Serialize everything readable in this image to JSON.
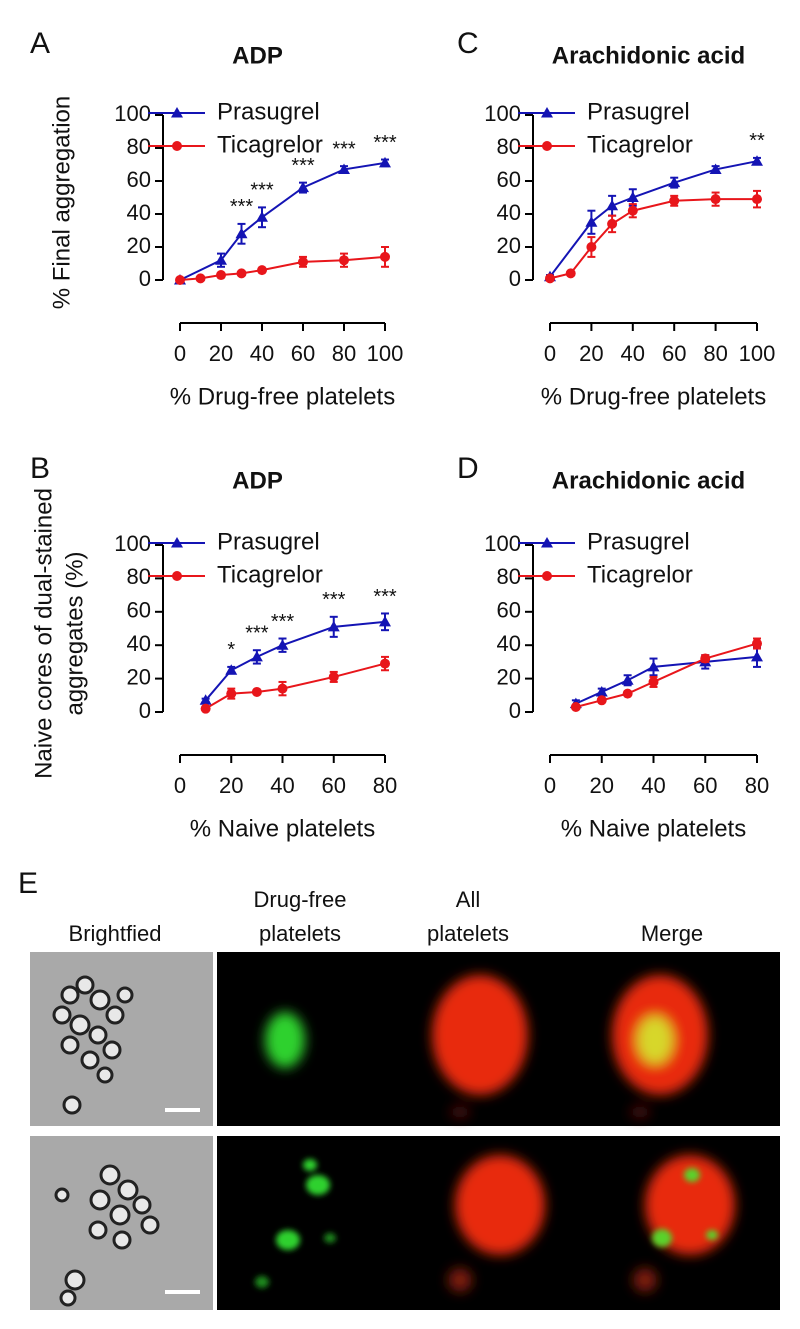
{
  "chart_data": [
    {
      "type": "line",
      "panel_label": "A",
      "title": "ADP",
      "xlabel": "% Drug-free platelets",
      "ylabel": [
        "% Final aggregation"
      ],
      "xlim": [
        0,
        100
      ],
      "xticks": [
        0,
        20,
        40,
        60,
        80,
        100
      ],
      "ylim": [
        0,
        100
      ],
      "yticks": [
        0,
        20,
        40,
        60,
        80,
        100
      ],
      "series": [
        {
          "name": "Prasugrel",
          "color": "#1414b4",
          "marker": "triangle",
          "x": [
            0,
            20,
            30,
            40,
            60,
            80,
            100
          ],
          "values": [
            0,
            12,
            28,
            38,
            56,
            67,
            71
          ],
          "errors": [
            1,
            4,
            6,
            6,
            3,
            2,
            2
          ]
        },
        {
          "name": "Ticagrelor",
          "color": "#e8161b",
          "marker": "circle",
          "x": [
            0,
            10,
            20,
            30,
            40,
            60,
            80,
            100
          ],
          "values": [
            0,
            1,
            3,
            4,
            6,
            11,
            12,
            14
          ],
          "errors": [
            1,
            1,
            1,
            1,
            1,
            3,
            4,
            6
          ]
        }
      ],
      "annotations": [
        {
          "x": 30,
          "text": "***"
        },
        {
          "x": 40,
          "text": "***"
        },
        {
          "x": 60,
          "text": "***"
        },
        {
          "x": 80,
          "text": "***"
        },
        {
          "x": 100,
          "text": "***"
        }
      ]
    },
    {
      "type": "line",
      "panel_label": "C",
      "title": "Arachidonic acid",
      "xlabel": "% Drug-free platelets",
      "ylabel": [],
      "xlim": [
        0,
        100
      ],
      "xticks": [
        0,
        20,
        40,
        60,
        80,
        100
      ],
      "ylim": [
        0,
        100
      ],
      "yticks": [
        0,
        20,
        40,
        60,
        80,
        100
      ],
      "series": [
        {
          "name": "Prasugrel",
          "color": "#1414b4",
          "marker": "triangle",
          "x": [
            0,
            20,
            30,
            40,
            60,
            80,
            100
          ],
          "values": [
            2,
            35,
            45,
            50,
            59,
            67,
            72
          ],
          "errors": [
            1,
            7,
            6,
            5,
            3,
            2,
            2
          ]
        },
        {
          "name": "Ticagrelor",
          "color": "#e8161b",
          "marker": "circle",
          "x": [
            0,
            10,
            20,
            30,
            40,
            60,
            80,
            100
          ],
          "values": [
            1,
            4,
            20,
            34,
            42,
            48,
            49,
            49
          ],
          "errors": [
            1,
            1,
            6,
            5,
            4,
            3,
            4,
            5
          ]
        }
      ],
      "annotations": [
        {
          "x": 100,
          "text": "**"
        }
      ]
    },
    {
      "type": "line",
      "panel_label": "B",
      "title": "ADP",
      "xlabel": "% Naive platelets",
      "ylabel": [
        "Naive cores of dual-stained",
        "aggregates (%)"
      ],
      "xlim": [
        0,
        80
      ],
      "xticks": [
        0,
        20,
        40,
        60,
        80
      ],
      "ylim": [
        0,
        100
      ],
      "yticks": [
        0,
        20,
        40,
        60,
        80,
        100
      ],
      "series": [
        {
          "name": "Prasugrel",
          "color": "#1414b4",
          "marker": "triangle",
          "x": [
            10,
            20,
            30,
            40,
            60,
            80
          ],
          "values": [
            7,
            25,
            33,
            40,
            51,
            54
          ],
          "errors": [
            1,
            2,
            4,
            4,
            6,
            5
          ]
        },
        {
          "name": "Ticagrelor",
          "color": "#e8161b",
          "marker": "circle",
          "x": [
            10,
            20,
            30,
            40,
            60,
            80
          ],
          "values": [
            2,
            11,
            12,
            14,
            21,
            29
          ],
          "errors": [
            1,
            3,
            1,
            4,
            3,
            4
          ]
        }
      ],
      "annotations": [
        {
          "x": 20,
          "text": "*"
        },
        {
          "x": 30,
          "text": "***"
        },
        {
          "x": 40,
          "text": "***"
        },
        {
          "x": 60,
          "text": "***"
        },
        {
          "x": 80,
          "text": "***"
        }
      ]
    },
    {
      "type": "line",
      "panel_label": "D",
      "title": "Arachidonic acid",
      "xlabel": "% Naive platelets",
      "ylabel": [],
      "xlim": [
        0,
        80
      ],
      "xticks": [
        0,
        20,
        40,
        60,
        80
      ],
      "ylim": [
        0,
        100
      ],
      "yticks": [
        0,
        20,
        40,
        60,
        80,
        100
      ],
      "series": [
        {
          "name": "Prasugrel",
          "color": "#1414b4",
          "marker": "triangle",
          "x": [
            10,
            20,
            30,
            40,
            60,
            80
          ],
          "values": [
            5,
            12,
            19,
            27,
            30,
            33
          ],
          "errors": [
            2,
            2,
            3,
            5,
            4,
            6
          ]
        },
        {
          "name": "Ticagrelor",
          "color": "#e8161b",
          "marker": "circle",
          "x": [
            10,
            20,
            30,
            40,
            60,
            80
          ],
          "values": [
            3,
            7,
            11,
            18,
            32,
            41
          ],
          "errors": [
            1,
            1,
            1,
            3,
            2,
            3
          ]
        }
      ],
      "annotations": []
    }
  ],
  "figure_e": {
    "panel_label": "E",
    "columns": [
      [
        "Brightfied"
      ],
      [
        "Drug-free",
        "platelets"
      ],
      [
        "All",
        "platelets"
      ],
      [
        "Merge"
      ]
    ]
  }
}
